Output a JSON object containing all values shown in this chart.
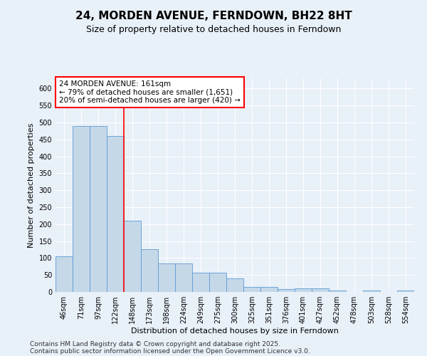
{
  "title": "24, MORDEN AVENUE, FERNDOWN, BH22 8HT",
  "subtitle": "Size of property relative to detached houses in Ferndown",
  "xlabel": "Distribution of detached houses by size in Ferndown",
  "ylabel": "Number of detached properties",
  "footer_line1": "Contains HM Land Registry data © Crown copyright and database right 2025.",
  "footer_line2": "Contains public sector information licensed under the Open Government Licence v3.0.",
  "categories": [
    "46sqm",
    "71sqm",
    "97sqm",
    "122sqm",
    "148sqm",
    "173sqm",
    "198sqm",
    "224sqm",
    "249sqm",
    "275sqm",
    "300sqm",
    "325sqm",
    "351sqm",
    "376sqm",
    "401sqm",
    "427sqm",
    "452sqm",
    "478sqm",
    "503sqm",
    "528sqm",
    "554sqm"
  ],
  "values": [
    105,
    490,
    490,
    460,
    210,
    125,
    83,
    83,
    57,
    57,
    40,
    14,
    14,
    9,
    11,
    11,
    4,
    0,
    5,
    0,
    5
  ],
  "bar_color": "#c5d8e8",
  "bar_edge_color": "#5b9bd5",
  "vline_color": "red",
  "annotation_text": "24 MORDEN AVENUE: 161sqm\n← 79% of detached houses are smaller (1,651)\n20% of semi-detached houses are larger (420) →",
  "annotation_box_color": "white",
  "annotation_box_edgecolor": "red",
  "ylim": [
    0,
    630
  ],
  "yticks": [
    0,
    50,
    100,
    150,
    200,
    250,
    300,
    350,
    400,
    450,
    500,
    550,
    600
  ],
  "background_color": "#e8f0f8",
  "plot_bg_color": "#e8f0f8",
  "grid_color": "white",
  "title_fontsize": 11,
  "subtitle_fontsize": 9,
  "label_fontsize": 8,
  "tick_fontsize": 7,
  "footer_fontsize": 6.5,
  "annotation_fontsize": 7.5
}
